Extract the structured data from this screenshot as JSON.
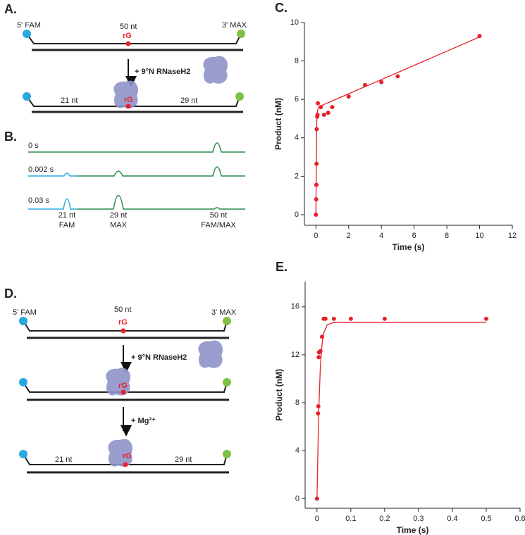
{
  "panel_a": {
    "label": "A.",
    "five_prime": "5' FAM",
    "length": "50 nt",
    "rg": "rG",
    "three_prime": "3' MAX",
    "enzyme": "+ 9°N RNaseH2",
    "left_length": "21 nt",
    "rg_bound": "rG",
    "right_length": "29 nt"
  },
  "panel_b": {
    "label": "B.",
    "times": [
      "0 s",
      "0.002 s",
      "0.03 s"
    ],
    "peaks": [
      [
        "21 nt",
        "FAM"
      ],
      [
        "29 nt",
        "MAX"
      ],
      [
        "50 nt",
        "FAM/MAX"
      ]
    ]
  },
  "panel_d": {
    "label": "D.",
    "five_prime": "5' FAM",
    "length": "50 nt",
    "rg": "rG",
    "three_prime": "3' MAX",
    "enzyme": "+ 9°N RNaseH2",
    "rg_bound": "rG",
    "metal": "+ Mg²⁺",
    "left_length": "21 nt",
    "rg_cleaved": "rG",
    "right_length": "29 nt"
  },
  "chart_data": [
    {
      "type": "scatter",
      "panel_label": "C.",
      "x_label": "Time (s)",
      "y_label": "Product (nM)",
      "xlim": [
        -0.7,
        12
      ],
      "xticks": [
        0,
        2,
        4,
        6,
        8,
        10,
        12
      ],
      "ylim": [
        -0.55,
        10
      ],
      "yticks": [
        0,
        2,
        4,
        6,
        8,
        10
      ],
      "series": [
        {
          "style": "points",
          "color": "#e8202a",
          "x": [
            0,
            0.02,
            0.03,
            0.04,
            0.05,
            0.08,
            0.1,
            0.12,
            0.3,
            0.5,
            0.75,
            1,
            2,
            3,
            4,
            5,
            10
          ],
          "values": [
            0,
            0.8,
            1.55,
            2.65,
            4.45,
            5.1,
            5.2,
            5.8,
            5.6,
            5.2,
            5.3,
            5.6,
            6.15,
            6.75,
            6.9,
            7.2,
            9.3
          ]
        },
        {
          "style": "line",
          "color": "#e8202a",
          "x": [
            0,
            0.05,
            0.1,
            0.2,
            0.3,
            0.5,
            1,
            2,
            4,
            6,
            8,
            10
          ],
          "values": [
            0,
            4.8,
            5.44,
            5.62,
            5.66,
            5.74,
            5.92,
            6.29,
            7.03,
            7.77,
            8.51,
            9.25
          ]
        }
      ]
    },
    {
      "type": "scatter",
      "panel_label": "E.",
      "x_label": "Time (s)",
      "y_label": "Product (nM)",
      "xlim": [
        -0.035,
        0.6
      ],
      "xticks": [
        0,
        0.1,
        0.2,
        0.3,
        0.4,
        0.5,
        0.6
      ],
      "ylim": [
        -0.8,
        18.1
      ],
      "yticks": [
        0,
        4,
        8,
        12,
        16
      ],
      "series": [
        {
          "style": "points",
          "color": "#e8202a",
          "x": [
            0,
            0.003,
            0.004,
            0.005,
            0.006,
            0.01,
            0.015,
            0.02,
            0.025,
            0.05,
            0.1,
            0.2,
            0.5
          ],
          "values": [
            0,
            7.1,
            7.7,
            11.8,
            12.2,
            12.3,
            13.5,
            15,
            15,
            15,
            15,
            15,
            15
          ]
        },
        {
          "style": "line",
          "color": "#e8202a",
          "x": [
            0,
            0.005,
            0.01,
            0.015,
            0.02,
            0.03,
            0.05,
            0.5
          ],
          "values": [
            0,
            7.2,
            11.0,
            12.9,
            13.8,
            14.5,
            14.7,
            14.7
          ]
        }
      ]
    }
  ]
}
